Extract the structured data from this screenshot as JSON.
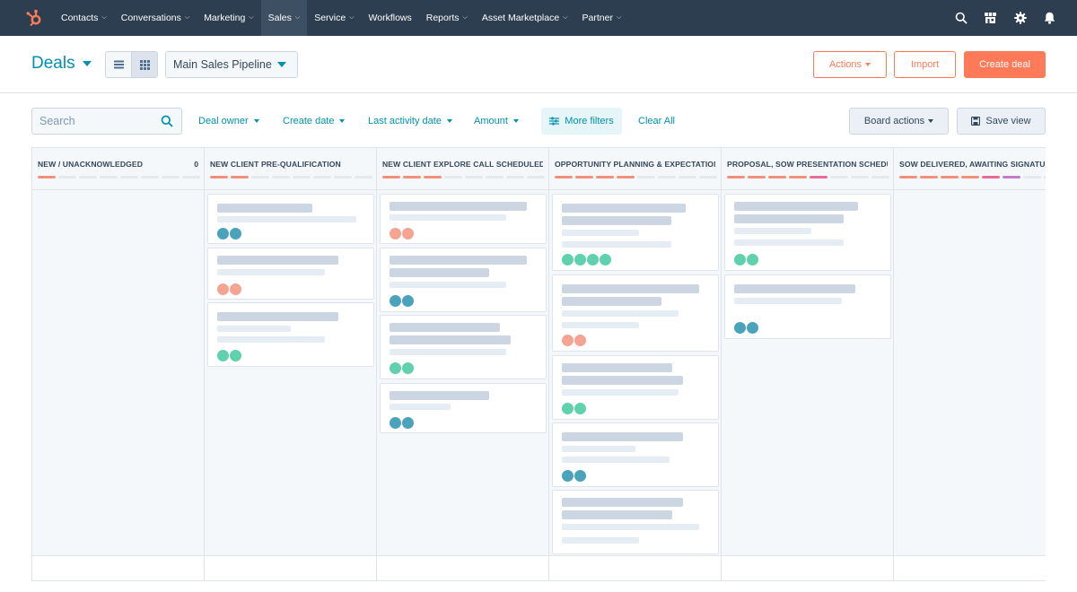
{
  "nav": {
    "items": [
      {
        "label": "Contacts"
      },
      {
        "label": "Conversations"
      },
      {
        "label": "Marketing"
      },
      {
        "label": "Sales",
        "active": true
      },
      {
        "label": "Service"
      },
      {
        "label": "Workflows",
        "no_chevron": true
      },
      {
        "label": "Reports"
      },
      {
        "label": "Asset Marketplace"
      },
      {
        "label": "Partner"
      }
    ],
    "right_icons": [
      "search-icon",
      "marketplace-icon",
      "settings-gear-icon",
      "notifications-bell-icon"
    ]
  },
  "header": {
    "title": "Deals",
    "pipeline": "Main Sales Pipeline",
    "actions_label": "Actions",
    "import_label": "Import",
    "create_label": "Create deal"
  },
  "filters": {
    "search_placeholder": "Search",
    "deal_owner": "Deal owner",
    "create_date": "Create date",
    "last_activity_date": "Last activity date",
    "amount": "Amount",
    "more_filters": "More filters",
    "clear_all": "Clear All",
    "board_actions": "Board actions",
    "save_view": "Save view"
  },
  "colors": {
    "nav_bg": "#2d3e50",
    "accent_teal": "#0091ae",
    "brand_orange": "#ff7a59",
    "avatar_blue": "#4aa3bb",
    "avatar_orange": "#f5a491",
    "avatar_green": "#5fd1ad"
  },
  "columns": [
    {
      "title": "NEW / UNACKNOWLEDGED",
      "count": "0",
      "progress_filled": 1,
      "segment_colors": [
        "#f2907d",
        "#e5e8ed",
        "#e5e8ed",
        "#e5e8ed",
        "#e5e8ed",
        "#e5e8ed",
        "#e5e8ed",
        "#e5e8ed"
      ],
      "cards": []
    },
    {
      "title": "NEW CLIENT PRE-QUALIFICATION",
      "count": "",
      "progress_filled": 2,
      "segment_colors": [
        "#f2907d",
        "#f2907d",
        "#e5e8ed",
        "#e5e8ed",
        "#e5e8ed",
        "#e5e8ed",
        "#e5e8ed",
        "#e5e8ed"
      ],
      "cards": [
        {
          "avatars": [
            "blue",
            "blue"
          ]
        },
        {
          "avatars": [
            "orange",
            "orange"
          ]
        },
        {
          "avatars": [
            "green",
            "green"
          ]
        }
      ]
    },
    {
      "title": "NEW CLIENT EXPLORE CALL SCHEDULED",
      "count": "",
      "progress_filled": 3,
      "segment_colors": [
        "#f2907d",
        "#f2907d",
        "#f2907d",
        "#e5e8ed",
        "#e5e8ed",
        "#e5e8ed",
        "#e5e8ed",
        "#e5e8ed"
      ],
      "cards": [
        {
          "avatars": [
            "orange",
            "orange"
          ]
        },
        {
          "avatars": [
            "blue",
            "blue"
          ]
        },
        {
          "avatars": [
            "green",
            "green"
          ]
        },
        {
          "avatars": [
            "blue",
            "blue"
          ]
        }
      ]
    },
    {
      "title": "OPPORTUNITY PLANNING & EXPECTATIONS",
      "count": "",
      "progress_filled": 4,
      "segment_colors": [
        "#f2907d",
        "#f2907d",
        "#f2907d",
        "#f2907d",
        "#e5e8ed",
        "#e5e8ed",
        "#e5e8ed",
        "#e5e8ed"
      ],
      "cards": [
        {
          "avatars": [
            "green",
            "green",
            "green",
            "green"
          ]
        },
        {
          "avatars": [
            "orange",
            "orange"
          ]
        },
        {
          "avatars": [
            "green",
            "green"
          ]
        },
        {
          "avatars": [
            "blue",
            "blue"
          ]
        },
        {
          "avatars": []
        }
      ]
    },
    {
      "title": "PROPOSAL, SOW PRESENTATION SCHEDULED",
      "count": "",
      "progress_filled": 5,
      "segment_colors": [
        "#f2907d",
        "#f2907d",
        "#f2907d",
        "#f2907d",
        "#e86d96",
        "#e5e8ed",
        "#e5e8ed",
        "#e5e8ed"
      ],
      "cards": [
        {
          "avatars": [
            "green",
            "green"
          ]
        },
        {
          "avatars": [
            "blue",
            "blue"
          ]
        }
      ]
    },
    {
      "title": "SOW DELIVERED, AWAITING SIGNATURE",
      "count": "",
      "progress_filled": 6,
      "segment_colors": [
        "#f2907d",
        "#f2907d",
        "#f2907d",
        "#f2907d",
        "#e86d96",
        "#c27dc5",
        "#e5e8ed",
        "#e5e8ed"
      ],
      "cards": []
    }
  ]
}
